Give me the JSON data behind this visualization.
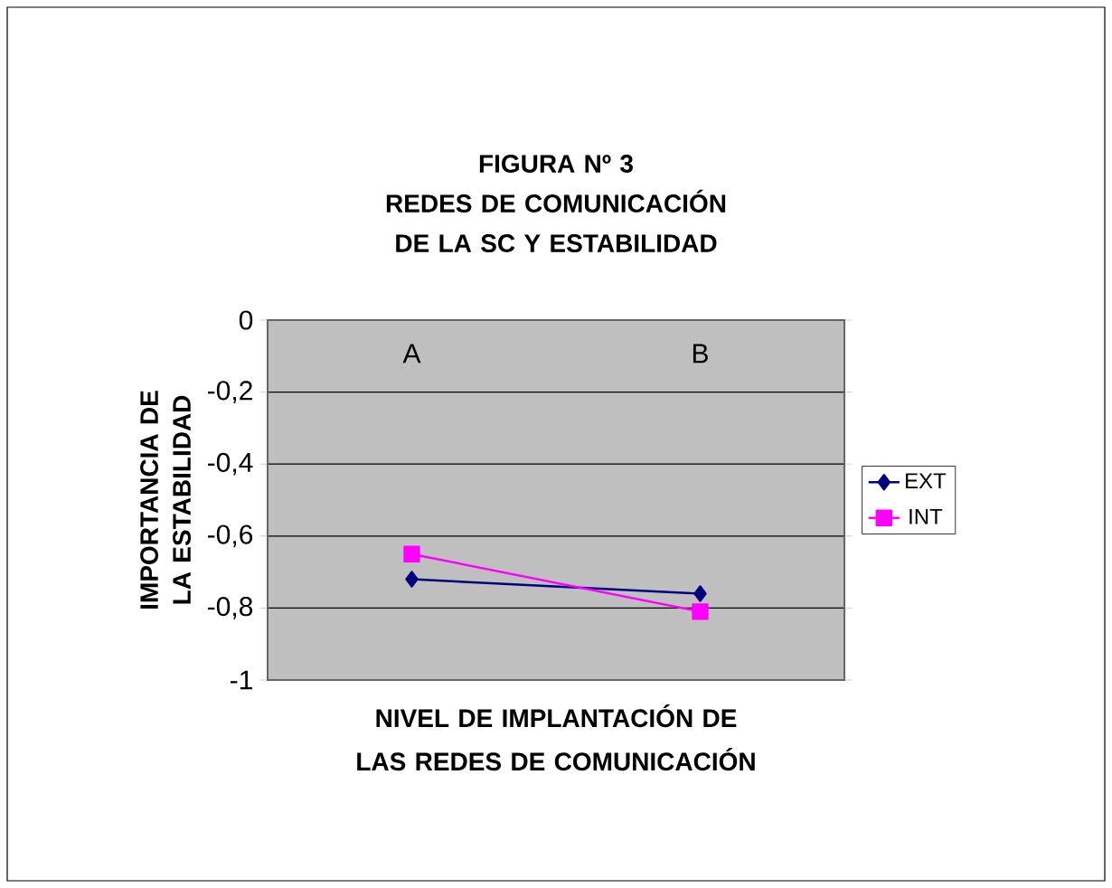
{
  "chart_data": {
    "type": "line",
    "title": "FIGURA Nº 3",
    "subtitle": "REDES DE COMUNICACIÓN DE LA SC Y ESTABILIDAD",
    "xlabel": "NIVEL DE IMPLANTACIÓN DE LAS REDES DE COMUNICACIÓN",
    "ylabel": "IMPORTANCIA DE LA ESTABILIDAD",
    "categories": [
      "A",
      "B"
    ],
    "series": [
      {
        "name": "EXT",
        "color": "#000080",
        "marker": "diamond",
        "values": [
          -0.72,
          -0.76
        ]
      },
      {
        "name": "INT",
        "color": "#ff00ff",
        "marker": "square",
        "values": [
          -0.65,
          -0.81
        ]
      }
    ],
    "ylim": [
      -1,
      0
    ],
    "yticks": [
      0,
      {
        "value": -0.2,
        "label": "-0,2"
      },
      {
        "value": -0.4,
        "label": "-0,4"
      },
      {
        "value": -0.6,
        "label": "-0,6"
      },
      {
        "value": -0.8,
        "label": "-0,8"
      },
      -1
    ],
    "grid": "y",
    "legend": "right"
  }
}
